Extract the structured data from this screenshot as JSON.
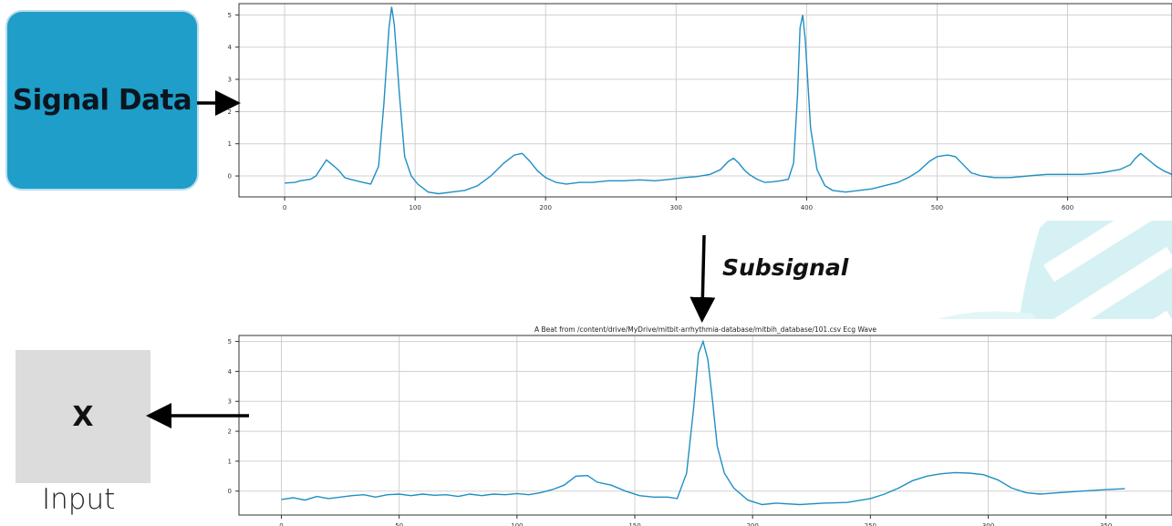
{
  "signal_box": {
    "label": "Signal Data"
  },
  "input_box": {
    "symbol": "X",
    "caption": "Input"
  },
  "arrow_label": "Subsignal",
  "colors": {
    "signal_box": "#1e9ec8",
    "line": "#1f8fc4",
    "input_box": "#dcdcdc",
    "decoration": "#cdeff1"
  },
  "chart_data": [
    {
      "type": "line",
      "title": "",
      "xlabel": "",
      "ylabel": "",
      "xlim": [
        -35,
        680
      ],
      "ylim": [
        -0.65,
        5.35
      ],
      "x_ticks": [
        0,
        100,
        200,
        300,
        400,
        500,
        600
      ],
      "y_ticks": [
        0,
        1,
        2,
        3,
        4,
        5
      ],
      "grid": true,
      "series": [
        {
          "x": [
            0,
            8,
            12,
            20,
            24,
            28,
            32,
            38,
            42,
            46,
            50,
            55,
            60,
            66,
            72,
            76,
            80,
            82,
            84,
            88,
            92,
            97,
            102,
            110,
            118,
            128,
            138,
            148,
            158,
            168,
            176,
            182,
            188,
            194,
            200,
            208,
            216,
            226,
            236,
            248,
            260,
            272,
            284,
            296,
            306,
            316,
            326,
            334,
            340,
            344,
            348,
            352,
            356,
            362,
            368,
            374,
            380,
            386,
            390,
            393,
            395,
            397,
            399,
            403,
            408,
            414,
            420,
            430,
            440,
            450,
            460,
            470,
            478,
            486,
            494,
            500,
            508,
            514,
            520,
            526,
            534,
            544,
            556,
            570,
            584,
            598,
            612,
            626,
            640,
            648,
            652,
            656,
            662,
            668,
            674,
            680
          ],
          "y": [
            -0.22,
            -0.2,
            -0.15,
            -0.1,
            0.0,
            0.25,
            0.5,
            0.3,
            0.15,
            -0.05,
            -0.1,
            -0.15,
            -0.2,
            -0.25,
            0.3,
            2.2,
            4.6,
            5.25,
            4.7,
            2.5,
            0.6,
            0.0,
            -0.25,
            -0.5,
            -0.55,
            -0.5,
            -0.45,
            -0.3,
            0.0,
            0.4,
            0.65,
            0.7,
            0.45,
            0.15,
            -0.05,
            -0.2,
            -0.25,
            -0.2,
            -0.2,
            -0.15,
            -0.15,
            -0.12,
            -0.15,
            -0.1,
            -0.05,
            -0.02,
            0.05,
            0.2,
            0.45,
            0.55,
            0.4,
            0.2,
            0.05,
            -0.1,
            -0.2,
            -0.18,
            -0.15,
            -0.1,
            0.4,
            2.5,
            4.6,
            5.0,
            4.2,
            1.5,
            0.2,
            -0.3,
            -0.45,
            -0.5,
            -0.45,
            -0.4,
            -0.3,
            -0.2,
            -0.05,
            0.15,
            0.45,
            0.6,
            0.65,
            0.6,
            0.35,
            0.1,
            0.0,
            -0.05,
            -0.05,
            0.0,
            0.05,
            0.05,
            0.05,
            0.1,
            0.2,
            0.35,
            0.55,
            0.7,
            0.5,
            0.3,
            0.15,
            0.05
          ]
        }
      ]
    },
    {
      "type": "line",
      "title": "A Beat from /content/drive/MyDrive/mitbit-arrhythmia-database/mitbih_database/101.csv Ecg Wave",
      "xlabel": "",
      "ylabel": "",
      "xlim": [
        -18,
        378
      ],
      "ylim": [
        -0.8,
        5.2
      ],
      "x_ticks": [
        0,
        50,
        100,
        150,
        200,
        250,
        300,
        350
      ],
      "y_ticks": [
        0,
        1,
        2,
        3,
        4,
        5
      ],
      "grid": true,
      "series": [
        {
          "x": [
            0,
            5,
            10,
            15,
            20,
            25,
            30,
            35,
            40,
            45,
            50,
            55,
            60,
            65,
            70,
            75,
            80,
            85,
            90,
            95,
            100,
            105,
            110,
            115,
            120,
            125,
            130,
            134,
            140,
            146,
            152,
            158,
            164,
            168,
            172,
            175,
            177,
            179,
            181,
            183,
            185,
            188,
            192,
            198,
            204,
            210,
            220,
            230,
            240,
            250,
            256,
            262,
            268,
            274,
            280,
            286,
            292,
            298,
            304,
            310,
            316,
            322,
            330,
            340,
            350,
            358
          ],
          "y": [
            -0.28,
            -0.22,
            -0.3,
            -0.18,
            -0.25,
            -0.2,
            -0.15,
            -0.12,
            -0.2,
            -0.12,
            -0.1,
            -0.15,
            -0.1,
            -0.14,
            -0.12,
            -0.18,
            -0.1,
            -0.15,
            -0.1,
            -0.12,
            -0.08,
            -0.12,
            -0.05,
            0.05,
            0.2,
            0.5,
            0.52,
            0.3,
            0.2,
            0.0,
            -0.15,
            -0.2,
            -0.2,
            -0.25,
            0.6,
            2.8,
            4.6,
            5.0,
            4.4,
            3.0,
            1.5,
            0.6,
            0.1,
            -0.3,
            -0.45,
            -0.4,
            -0.45,
            -0.4,
            -0.38,
            -0.25,
            -0.1,
            0.1,
            0.35,
            0.5,
            0.58,
            0.62,
            0.6,
            0.55,
            0.38,
            0.1,
            -0.05,
            -0.1,
            -0.05,
            0.0,
            0.05,
            0.08
          ]
        }
      ]
    }
  ]
}
